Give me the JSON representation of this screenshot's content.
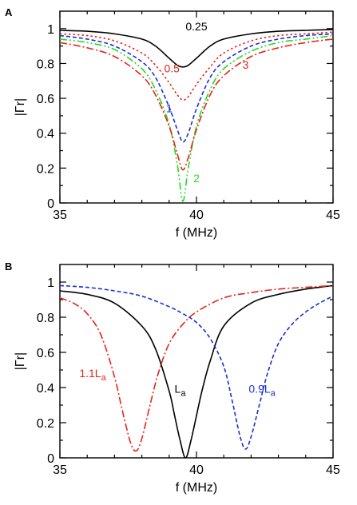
{
  "chart_data": [
    {
      "panel": "A",
      "type": "line",
      "xlabel": "f (MHz)",
      "ylabel": "|Γr|",
      "xlim": [
        35,
        45
      ],
      "ylim": [
        0,
        1.1
      ],
      "xticks": [
        35,
        40,
        45
      ],
      "yticks": [
        0,
        0.2,
        0.4,
        0.6,
        0.8,
        1
      ],
      "grid": false,
      "x": [
        35,
        36,
        37,
        38,
        38.5,
        39,
        39.3,
        39.5,
        39.7,
        40,
        40.5,
        41,
        42,
        43,
        44,
        45
      ],
      "series": [
        {
          "label": "0.25",
          "color": "#000000",
          "dash": "solid",
          "values": [
            0.99,
            0.985,
            0.97,
            0.94,
            0.9,
            0.83,
            0.79,
            0.78,
            0.79,
            0.83,
            0.9,
            0.94,
            0.97,
            0.985,
            0.99,
            0.995
          ]
        },
        {
          "label": "0.5",
          "color": "#e8231a",
          "dash": "dotted",
          "values": [
            0.97,
            0.96,
            0.93,
            0.86,
            0.79,
            0.69,
            0.62,
            0.59,
            0.61,
            0.68,
            0.78,
            0.86,
            0.93,
            0.96,
            0.97,
            0.98
          ]
        },
        {
          "label": "1",
          "color": "#1a2fd6",
          "dash": "short-dash",
          "values": [
            0.96,
            0.94,
            0.9,
            0.81,
            0.72,
            0.55,
            0.42,
            0.35,
            0.4,
            0.54,
            0.72,
            0.81,
            0.9,
            0.94,
            0.96,
            0.97
          ]
        },
        {
          "label": "2",
          "color": "#22dd22",
          "dash": "dash-dot-dot",
          "values": [
            0.94,
            0.92,
            0.88,
            0.77,
            0.65,
            0.45,
            0.22,
            0.01,
            0.2,
            0.44,
            0.65,
            0.77,
            0.87,
            0.92,
            0.94,
            0.96
          ]
        },
        {
          "label": "3",
          "color": "#e8231a",
          "dash": "dash-dot",
          "values": [
            0.92,
            0.89,
            0.84,
            0.73,
            0.62,
            0.44,
            0.28,
            0.19,
            0.26,
            0.42,
            0.62,
            0.73,
            0.84,
            0.89,
            0.92,
            0.94
          ]
        }
      ],
      "annotations": [
        {
          "text": "0.25",
          "x": 40.0,
          "y": 0.99,
          "color": "#000000"
        },
        {
          "text": "0.5",
          "x": 39.1,
          "y": 0.75,
          "color": "#e8231a"
        },
        {
          "text": "1",
          "x": 39.0,
          "y": 0.52,
          "color": "#1a2fd6"
        },
        {
          "text": "2",
          "x": 40.0,
          "y": 0.12,
          "color": "#22dd22"
        },
        {
          "text": "3",
          "x": 41.8,
          "y": 0.77,
          "color": "#e8231a"
        }
      ]
    },
    {
      "panel": "B",
      "type": "line",
      "xlabel": "f (MHz)",
      "ylabel": "|Γr|",
      "xlim": [
        35,
        45
      ],
      "ylim": [
        0,
        1.1
      ],
      "xticks": [
        35,
        40,
        45
      ],
      "yticks": [
        0,
        0.2,
        0.4,
        0.6,
        0.8,
        1
      ],
      "grid": false,
      "series": [
        {
          "label": "La",
          "color": "#000000",
          "dash": "solid",
          "x": [
            35,
            36,
            37,
            38,
            38.5,
            39,
            39.2,
            39.4,
            39.6,
            39.8,
            40,
            40.2,
            40.5,
            41,
            42,
            43,
            44,
            45
          ],
          "values": [
            0.95,
            0.93,
            0.88,
            0.75,
            0.62,
            0.38,
            0.24,
            0.1,
            0.0,
            0.1,
            0.24,
            0.38,
            0.55,
            0.75,
            0.88,
            0.93,
            0.96,
            0.98
          ]
        },
        {
          "label": "1.1La",
          "color": "#e8231a",
          "dash": "dash-dot",
          "x": [
            35,
            35.5,
            36,
            36.5,
            37,
            37.3,
            37.6,
            37.8,
            38,
            38.3,
            38.6,
            39,
            39.5,
            40,
            41,
            42,
            43,
            44,
            45
          ],
          "values": [
            0.91,
            0.88,
            0.82,
            0.7,
            0.46,
            0.26,
            0.08,
            0.04,
            0.11,
            0.3,
            0.48,
            0.65,
            0.76,
            0.83,
            0.91,
            0.94,
            0.96,
            0.97,
            0.98
          ]
        },
        {
          "label": "0.9La",
          "color": "#1a2fd6",
          "dash": "short-dash",
          "x": [
            35,
            36,
            37,
            38,
            39,
            39.5,
            40,
            40.5,
            41,
            41.3,
            41.6,
            41.8,
            42,
            42.3,
            42.6,
            43,
            43.5,
            44,
            44.5,
            45
          ],
          "values": [
            0.98,
            0.97,
            0.95,
            0.92,
            0.86,
            0.82,
            0.77,
            0.68,
            0.52,
            0.33,
            0.12,
            0.05,
            0.12,
            0.3,
            0.48,
            0.65,
            0.76,
            0.83,
            0.88,
            0.92
          ]
        }
      ],
      "annotations": [
        {
          "text": "1.1L",
          "sub": "a",
          "x": 36.2,
          "y": 0.46,
          "color": "#e8231a"
        },
        {
          "text": "L",
          "sub": "a",
          "x": 39.4,
          "y": 0.37,
          "color": "#000000"
        },
        {
          "text": "0.9L",
          "sub": "a",
          "x": 42.4,
          "y": 0.37,
          "color": "#1a2fd6"
        }
      ]
    }
  ]
}
